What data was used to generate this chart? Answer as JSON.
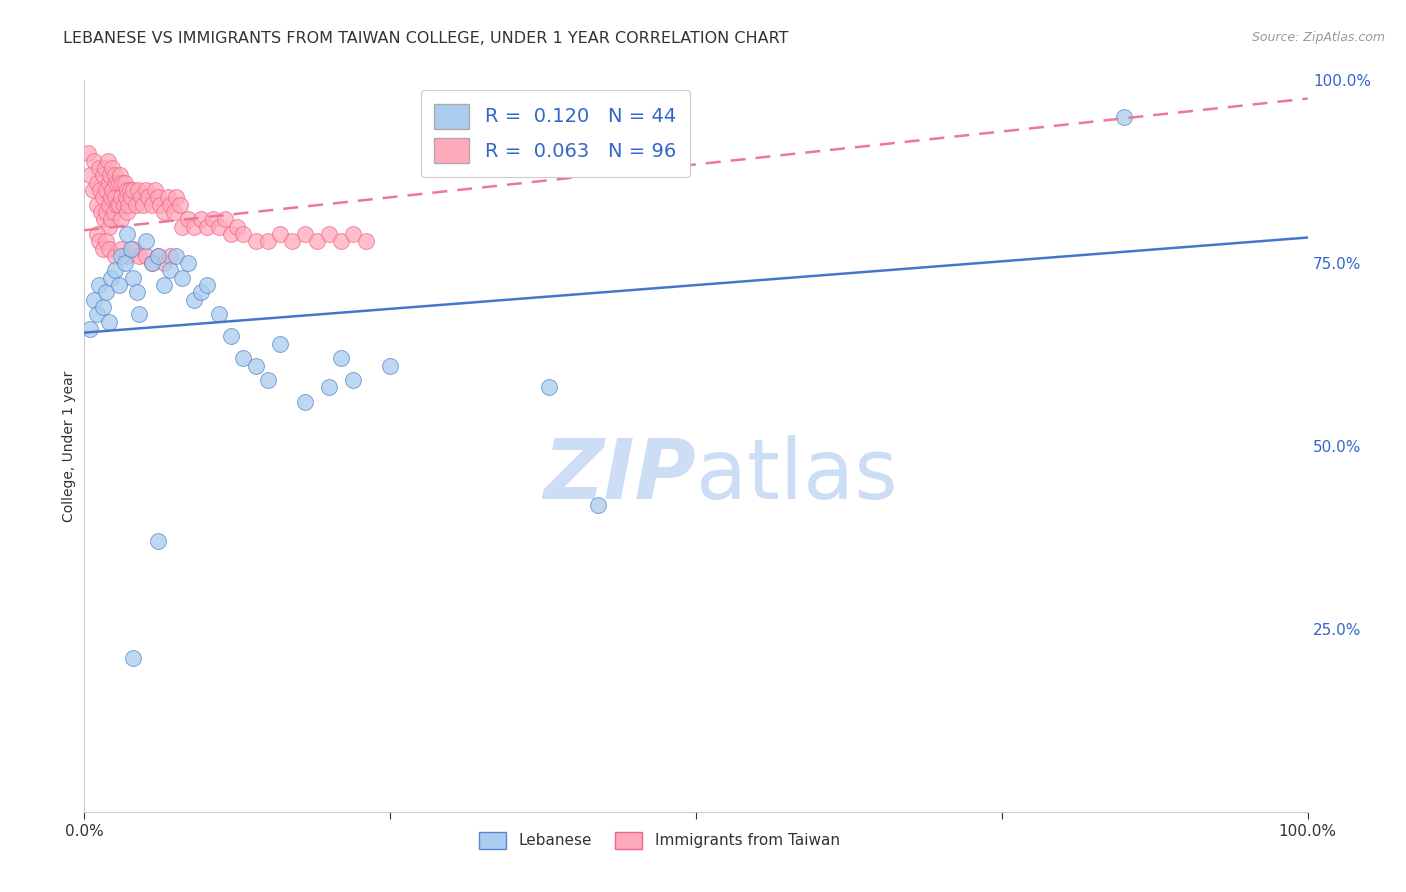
{
  "title": "LEBANESE VS IMMIGRANTS FROM TAIWAN COLLEGE, UNDER 1 YEAR CORRELATION CHART",
  "source": "Source: ZipAtlas.com",
  "ylabel": "College, Under 1 year",
  "xlim": [
    0,
    1
  ],
  "ylim": [
    0,
    1
  ],
  "xtick_positions": [
    0,
    0.25,
    0.5,
    0.75,
    1.0
  ],
  "xtick_labels": [
    "0.0%",
    "",
    "",
    "",
    "100.0%"
  ],
  "ytick_positions_right": [
    1.0,
    0.75,
    0.5,
    0.25,
    0.0
  ],
  "ytick_labels_right": [
    "100.0%",
    "75.0%",
    "50.0%",
    "25.0%",
    ""
  ],
  "legend_r_blue": "0.120",
  "legend_n_blue": "44",
  "legend_r_pink": "0.063",
  "legend_n_pink": "96",
  "blue_fill": "#AACCEE",
  "pink_fill": "#FFAABB",
  "blue_edge": "#5588CC",
  "pink_edge": "#EE6688",
  "blue_line": "#4477CC",
  "pink_line": "#EE7799",
  "tick_color_right": "#3366CC",
  "legend_text_color": "#3366CC",
  "grid_color": "#DDDDDD",
  "watermark_color": "#CCDDF5",
  "blue_scatter_x": [
    0.005,
    0.008,
    0.01,
    0.012,
    0.015,
    0.018,
    0.02,
    0.022,
    0.025,
    0.028,
    0.03,
    0.033,
    0.035,
    0.038,
    0.04,
    0.043,
    0.045,
    0.05,
    0.055,
    0.06,
    0.065,
    0.07,
    0.075,
    0.08,
    0.085,
    0.09,
    0.095,
    0.1,
    0.11,
    0.12,
    0.13,
    0.14,
    0.15,
    0.16,
    0.18,
    0.2,
    0.21,
    0.22,
    0.25,
    0.38,
    0.42,
    0.85,
    0.06,
    0.04
  ],
  "blue_scatter_y": [
    0.66,
    0.7,
    0.68,
    0.72,
    0.69,
    0.71,
    0.67,
    0.73,
    0.74,
    0.72,
    0.76,
    0.75,
    0.79,
    0.77,
    0.73,
    0.71,
    0.68,
    0.78,
    0.75,
    0.76,
    0.72,
    0.74,
    0.76,
    0.73,
    0.75,
    0.7,
    0.71,
    0.72,
    0.68,
    0.65,
    0.62,
    0.61,
    0.59,
    0.64,
    0.56,
    0.58,
    0.62,
    0.59,
    0.61,
    0.58,
    0.42,
    0.95,
    0.37,
    0.21
  ],
  "pink_scatter_x": [
    0.003,
    0.005,
    0.007,
    0.008,
    0.01,
    0.01,
    0.012,
    0.013,
    0.014,
    0.015,
    0.015,
    0.016,
    0.017,
    0.018,
    0.018,
    0.019,
    0.02,
    0.02,
    0.02,
    0.021,
    0.022,
    0.022,
    0.023,
    0.023,
    0.024,
    0.025,
    0.025,
    0.026,
    0.027,
    0.028,
    0.028,
    0.029,
    0.03,
    0.03,
    0.031,
    0.032,
    0.033,
    0.034,
    0.035,
    0.035,
    0.036,
    0.037,
    0.038,
    0.04,
    0.042,
    0.044,
    0.046,
    0.048,
    0.05,
    0.052,
    0.055,
    0.058,
    0.06,
    0.062,
    0.065,
    0.068,
    0.07,
    0.073,
    0.075,
    0.078,
    0.08,
    0.085,
    0.09,
    0.095,
    0.1,
    0.105,
    0.11,
    0.115,
    0.12,
    0.125,
    0.13,
    0.14,
    0.15,
    0.16,
    0.17,
    0.18,
    0.19,
    0.2,
    0.21,
    0.22,
    0.23,
    0.01,
    0.012,
    0.015,
    0.018,
    0.02,
    0.025,
    0.03,
    0.035,
    0.04,
    0.045,
    0.05,
    0.055,
    0.06,
    0.065,
    0.07
  ],
  "pink_scatter_y": [
    0.9,
    0.87,
    0.85,
    0.89,
    0.86,
    0.83,
    0.88,
    0.85,
    0.82,
    0.87,
    0.84,
    0.81,
    0.88,
    0.85,
    0.82,
    0.89,
    0.86,
    0.83,
    0.8,
    0.87,
    0.84,
    0.81,
    0.88,
    0.85,
    0.82,
    0.87,
    0.84,
    0.86,
    0.83,
    0.86,
    0.83,
    0.87,
    0.84,
    0.81,
    0.86,
    0.83,
    0.86,
    0.84,
    0.82,
    0.85,
    0.83,
    0.85,
    0.84,
    0.85,
    0.83,
    0.85,
    0.84,
    0.83,
    0.85,
    0.84,
    0.83,
    0.85,
    0.84,
    0.83,
    0.82,
    0.84,
    0.83,
    0.82,
    0.84,
    0.83,
    0.8,
    0.81,
    0.8,
    0.81,
    0.8,
    0.81,
    0.8,
    0.81,
    0.79,
    0.8,
    0.79,
    0.78,
    0.78,
    0.79,
    0.78,
    0.79,
    0.78,
    0.79,
    0.78,
    0.79,
    0.78,
    0.79,
    0.78,
    0.77,
    0.78,
    0.77,
    0.76,
    0.77,
    0.76,
    0.77,
    0.76,
    0.76,
    0.75,
    0.76,
    0.75,
    0.76
  ]
}
